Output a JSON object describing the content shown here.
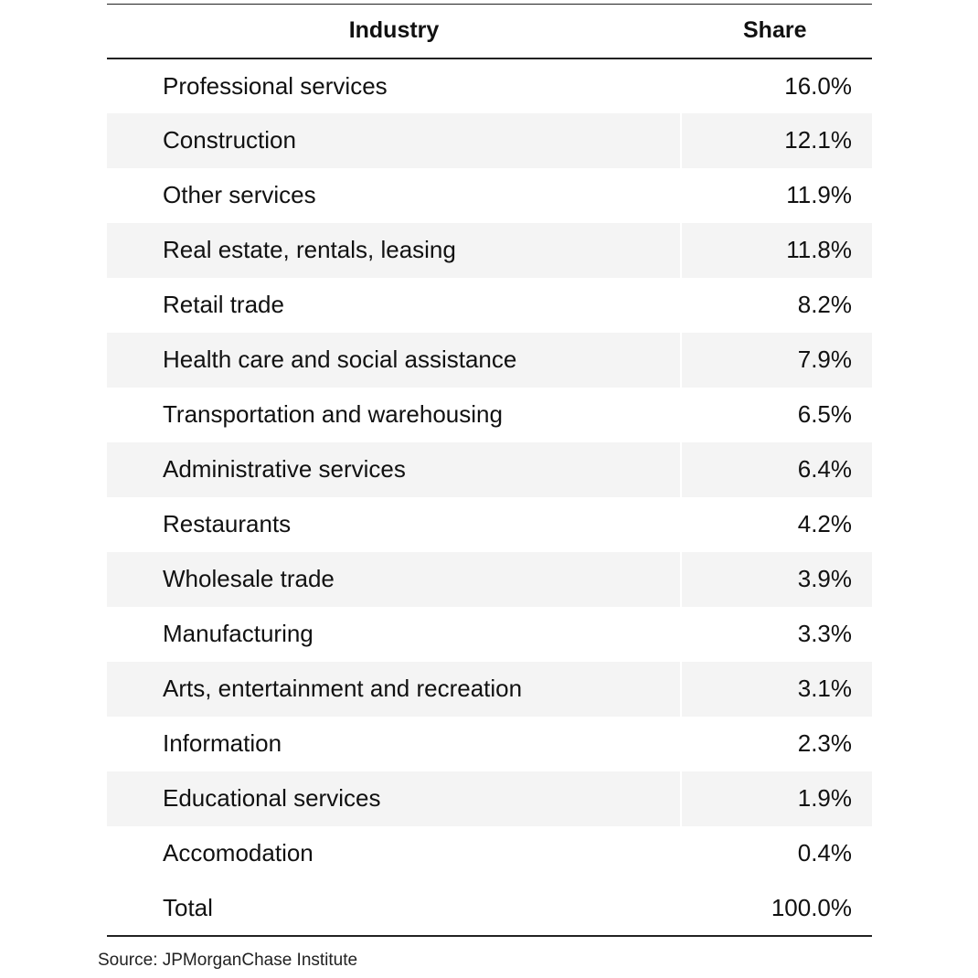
{
  "chart_data": {
    "type": "table",
    "columns": [
      "Industry",
      "Share"
    ],
    "rows": [
      {
        "industry": "Professional services",
        "share": "16.0%"
      },
      {
        "industry": "Construction",
        "share": "12.1%"
      },
      {
        "industry": "Other services",
        "share": "11.9%"
      },
      {
        "industry": "Real estate, rentals, leasing",
        "share": "11.8%"
      },
      {
        "industry": "Retail trade",
        "share": "8.2%"
      },
      {
        "industry": "Health care and social assistance",
        "share": "7.9%"
      },
      {
        "industry": "Transportation and warehousing",
        "share": "6.5%"
      },
      {
        "industry": "Administrative services",
        "share": "6.4%"
      },
      {
        "industry": "Restaurants",
        "share": "4.2%"
      },
      {
        "industry": "Wholesale trade",
        "share": "3.9%"
      },
      {
        "industry": "Manufacturing",
        "share": "3.3%"
      },
      {
        "industry": "Arts, entertainment and recreation",
        "share": "3.1%"
      },
      {
        "industry": "Information",
        "share": "2.3%"
      },
      {
        "industry": "Educational services",
        "share": "1.9%"
      },
      {
        "industry": "Accomodation",
        "share": "0.4%"
      }
    ],
    "total": {
      "industry": "Total",
      "share": "100.0%"
    },
    "source": "Source: JPMorganChase Institute"
  },
  "colors": {
    "row_shade": "#f4f4f4",
    "rule": "#222222",
    "text": "#111111"
  }
}
